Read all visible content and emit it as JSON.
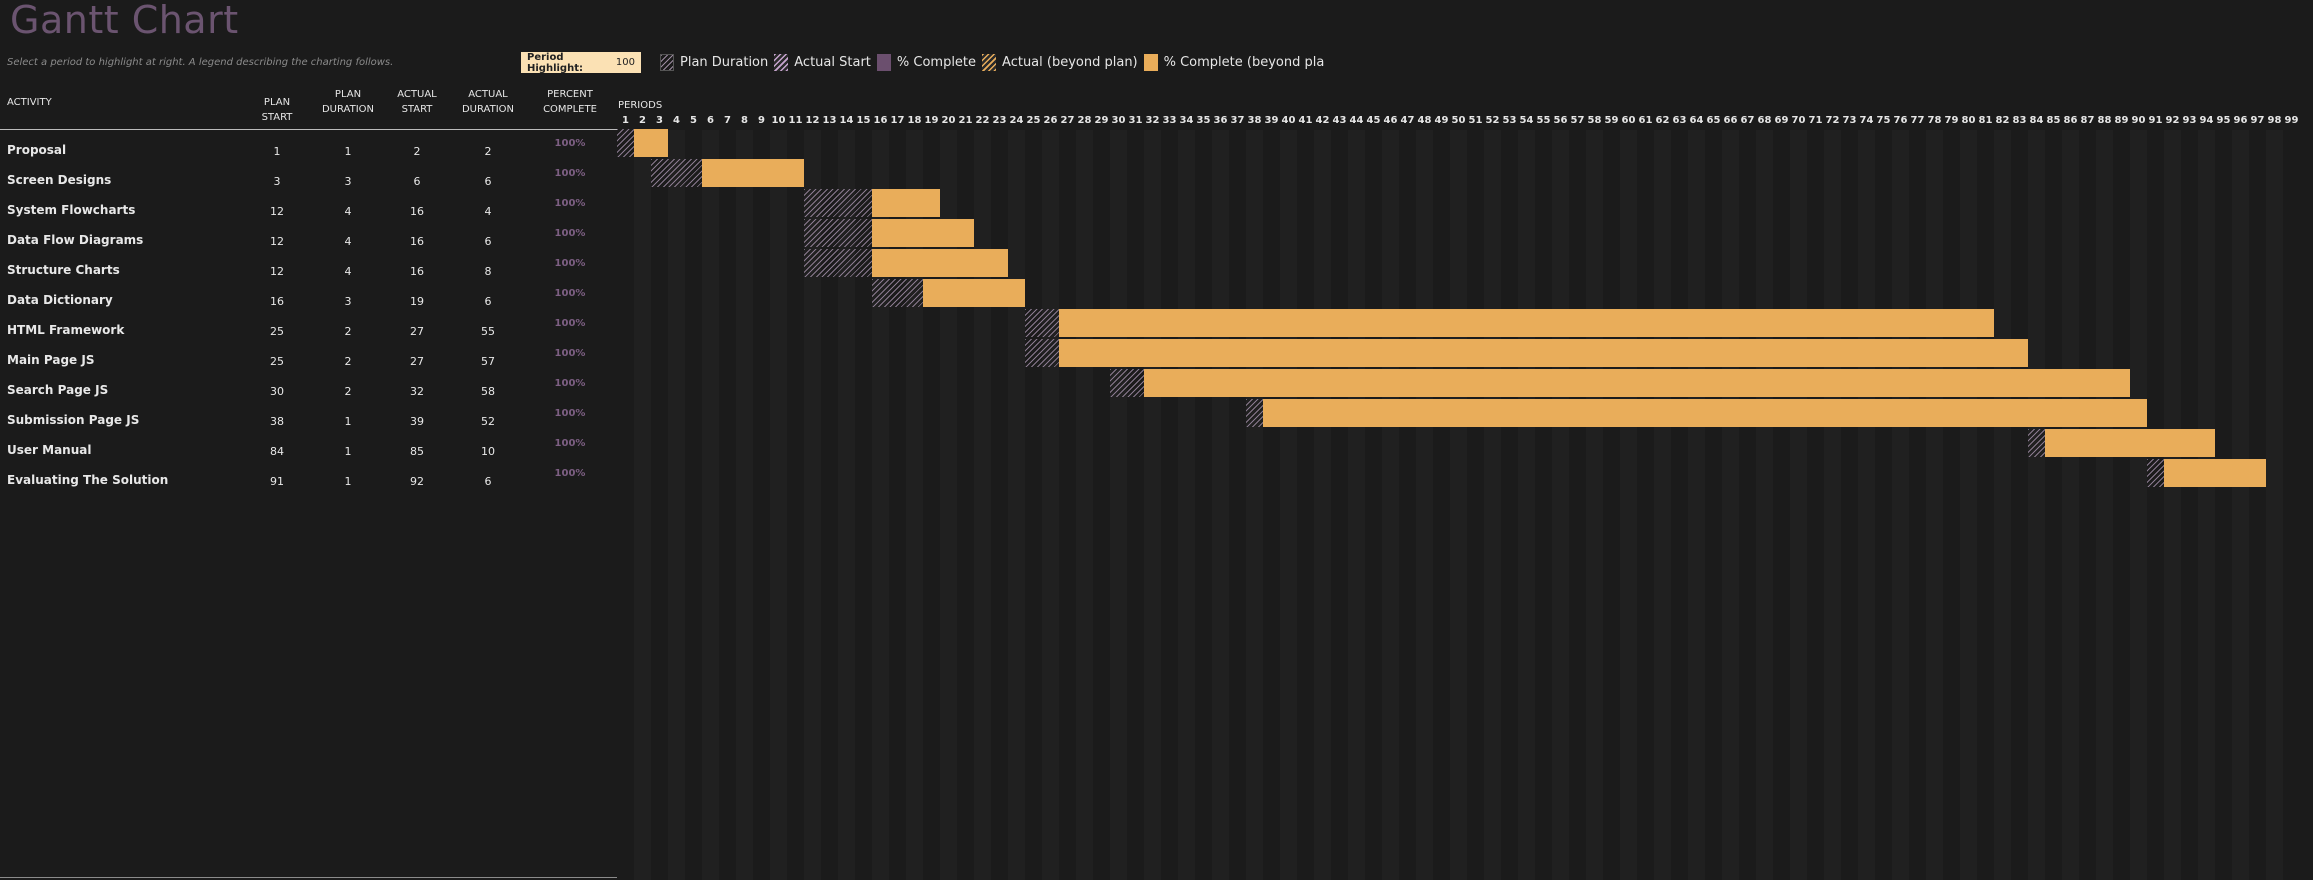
{
  "title": "Gantt Chart",
  "subtitle": "Select a period to highlight at right.  A legend describing the charting follows.",
  "period_highlight": {
    "label": "Period Highlight:",
    "value": "100"
  },
  "legend": [
    {
      "label": "Plan Duration",
      "icon": "plan-duration-swatch"
    },
    {
      "label": "Actual Start",
      "icon": "actual-start-swatch"
    },
    {
      "label": "% Complete",
      "icon": "percent-complete-swatch"
    },
    {
      "label": "Actual (beyond plan)",
      "icon": "actual-beyond-plan-swatch"
    },
    {
      "label": "% Complete (beyond pla",
      "icon": "percent-complete-beyond-swatch"
    }
  ],
  "columns": {
    "activity": "ACTIVITY",
    "plan_start": "PLAN START",
    "plan_duration": [
      "PLAN",
      "DURATION"
    ],
    "actual_start": [
      "ACTUAL",
      "START"
    ],
    "actual_duration": [
      "ACTUAL",
      "DURATION"
    ],
    "percent_complete": [
      "PERCENT",
      "COMPLETE"
    ],
    "periods": "PERIODS"
  },
  "period_count": 99,
  "colors": {
    "background": "#1b1b1b",
    "accent": "#6b5470",
    "actual_bar": "#e9ad5a",
    "percent_text": "#7d5f83"
  },
  "activities": [
    {
      "name": "Proposal",
      "plan_start": 1,
      "plan_duration": 1,
      "actual_start": 2,
      "actual_duration": 2,
      "percent": "100%"
    },
    {
      "name": "Screen Designs",
      "plan_start": 3,
      "plan_duration": 3,
      "actual_start": 6,
      "actual_duration": 6,
      "percent": "100%"
    },
    {
      "name": "System Flowcharts",
      "plan_start": 12,
      "plan_duration": 4,
      "actual_start": 16,
      "actual_duration": 4,
      "percent": "100%"
    },
    {
      "name": "Data Flow Diagrams",
      "plan_start": 12,
      "plan_duration": 4,
      "actual_start": 16,
      "actual_duration": 6,
      "percent": "100%"
    },
    {
      "name": "Structure Charts",
      "plan_start": 12,
      "plan_duration": 4,
      "actual_start": 16,
      "actual_duration": 8,
      "percent": "100%"
    },
    {
      "name": "Data Dictionary",
      "plan_start": 16,
      "plan_duration": 3,
      "actual_start": 19,
      "actual_duration": 6,
      "percent": "100%"
    },
    {
      "name": "HTML Framework",
      "plan_start": 25,
      "plan_duration": 2,
      "actual_start": 27,
      "actual_duration": 55,
      "percent": "100%"
    },
    {
      "name": "Main Page JS",
      "plan_start": 25,
      "plan_duration": 2,
      "actual_start": 27,
      "actual_duration": 57,
      "percent": "100%"
    },
    {
      "name": "Search Page JS",
      "plan_start": 30,
      "plan_duration": 2,
      "actual_start": 32,
      "actual_duration": 58,
      "percent": "100%"
    },
    {
      "name": "Submission Page JS",
      "plan_start": 38,
      "plan_duration": 1,
      "actual_start": 39,
      "actual_duration": 52,
      "percent": "100%"
    },
    {
      "name": "User Manual",
      "plan_start": 84,
      "plan_duration": 1,
      "actual_start": 85,
      "actual_duration": 10,
      "percent": "100%"
    },
    {
      "name": "Evaluating The Solution",
      "plan_start": 91,
      "plan_duration": 1,
      "actual_start": 92,
      "actual_duration": 6,
      "percent": "100%"
    }
  ]
}
